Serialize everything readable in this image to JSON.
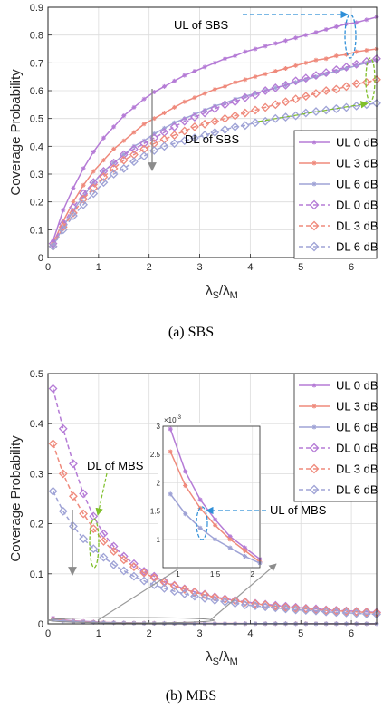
{
  "colors": {
    "s0": "#b57bd6",
    "s3": "#ef8a7c",
    "s6": "#9fa3d6",
    "grid": "#dcdcdc",
    "annGreen": "#7fbf2a",
    "annBlue": "#2f8fd8",
    "annGray": "#8c8c8c"
  },
  "chart_data": [
    {
      "type": "line",
      "caption": "(a)  SBS",
      "xlabel_main": "λ",
      "xlabel_sub1": "S",
      "xlabel_sep": "/λ",
      "xlabel_sub2": "M",
      "ylabel": "Coverage Probability",
      "xlim": [
        0,
        6.5
      ],
      "ylim": [
        0,
        0.9
      ],
      "xticks": [
        "0",
        "1",
        "2",
        "3",
        "4",
        "5",
        "6"
      ],
      "yticks": [
        "0",
        "0.1",
        "0.2",
        "0.3",
        "0.4",
        "0.5",
        "0.6",
        "0.7",
        "0.8",
        "0.9"
      ],
      "grid": true,
      "legend_position": "bottom-right",
      "annotations": [
        "UL of SBS",
        "DL of SBS"
      ],
      "series": [
        {
          "name": "UL 0 dB",
          "style": "solid-star",
          "color": "s0",
          "x": [
            0.1,
            0.3,
            0.5,
            0.7,
            0.9,
            1.1,
            1.3,
            1.5,
            1.7,
            1.9,
            2.1,
            2.3,
            2.5,
            2.7,
            2.9,
            3.1,
            3.3,
            3.5,
            3.7,
            3.9,
            4.1,
            4.3,
            4.5,
            4.7,
            4.9,
            5.1,
            5.3,
            5.5,
            5.7,
            5.9,
            6.1,
            6.3,
            6.5
          ],
          "y": [
            0.06,
            0.17,
            0.25,
            0.32,
            0.38,
            0.43,
            0.47,
            0.51,
            0.54,
            0.57,
            0.595,
            0.615,
            0.635,
            0.655,
            0.67,
            0.685,
            0.7,
            0.715,
            0.725,
            0.74,
            0.75,
            0.76,
            0.77,
            0.78,
            0.79,
            0.8,
            0.81,
            0.82,
            0.83,
            0.84,
            0.845,
            0.855,
            0.865
          ]
        },
        {
          "name": "UL 3 dB",
          "style": "solid-star",
          "color": "s3",
          "x": [
            0.1,
            0.3,
            0.5,
            0.7,
            0.9,
            1.1,
            1.3,
            1.5,
            1.7,
            1.9,
            2.1,
            2.3,
            2.5,
            2.7,
            2.9,
            3.1,
            3.3,
            3.5,
            3.7,
            3.9,
            4.1,
            4.3,
            4.5,
            4.7,
            4.9,
            5.1,
            5.3,
            5.5,
            5.7,
            5.9,
            6.1,
            6.3,
            6.5
          ],
          "y": [
            0.05,
            0.13,
            0.2,
            0.26,
            0.31,
            0.35,
            0.39,
            0.42,
            0.45,
            0.48,
            0.5,
            0.52,
            0.54,
            0.56,
            0.575,
            0.59,
            0.605,
            0.615,
            0.63,
            0.64,
            0.65,
            0.66,
            0.67,
            0.68,
            0.69,
            0.7,
            0.71,
            0.715,
            0.725,
            0.73,
            0.74,
            0.745,
            0.75
          ]
        },
        {
          "name": "UL 6 dB",
          "style": "solid-star",
          "color": "s6",
          "x": [
            0.1,
            0.3,
            0.5,
            0.7,
            0.9,
            1.1,
            1.3,
            1.5,
            1.7,
            1.9,
            2.1,
            2.3,
            2.5,
            2.7,
            2.9,
            3.1,
            3.3,
            3.5,
            3.7,
            3.9,
            4.1,
            4.3,
            4.5,
            4.7,
            4.9,
            5.1,
            5.3,
            5.5,
            5.7,
            5.9,
            6.1,
            6.3,
            6.5
          ],
          "y": [
            0.04,
            0.11,
            0.17,
            0.22,
            0.27,
            0.31,
            0.34,
            0.37,
            0.4,
            0.42,
            0.445,
            0.465,
            0.485,
            0.5,
            0.515,
            0.53,
            0.545,
            0.555,
            0.57,
            0.58,
            0.59,
            0.6,
            0.61,
            0.62,
            0.63,
            0.64,
            0.65,
            0.66,
            0.67,
            0.68,
            0.69,
            0.7,
            0.71
          ]
        },
        {
          "name": "DL 0 dB",
          "style": "dashed-diamond",
          "color": "s0",
          "x": [
            0.1,
            0.3,
            0.5,
            0.7,
            0.9,
            1.1,
            1.3,
            1.5,
            1.7,
            1.9,
            2.1,
            2.3,
            2.5,
            2.7,
            2.9,
            3.1,
            3.3,
            3.5,
            3.7,
            3.9,
            4.1,
            4.3,
            4.5,
            4.7,
            4.9,
            5.1,
            5.3,
            5.5,
            5.7,
            5.9,
            6.1,
            6.3,
            6.5
          ],
          "y": [
            0.05,
            0.12,
            0.18,
            0.23,
            0.27,
            0.31,
            0.34,
            0.37,
            0.39,
            0.41,
            0.43,
            0.45,
            0.47,
            0.49,
            0.505,
            0.52,
            0.535,
            0.55,
            0.56,
            0.575,
            0.585,
            0.6,
            0.61,
            0.62,
            0.635,
            0.645,
            0.655,
            0.665,
            0.675,
            0.685,
            0.695,
            0.705,
            0.715
          ]
        },
        {
          "name": "DL 3 dB",
          "style": "dashed-diamond",
          "color": "s3",
          "x": [
            0.1,
            0.3,
            0.5,
            0.7,
            0.9,
            1.1,
            1.3,
            1.5,
            1.7,
            1.9,
            2.1,
            2.3,
            2.5,
            2.7,
            2.9,
            3.1,
            3.3,
            3.5,
            3.7,
            3.9,
            4.1,
            4.3,
            4.5,
            4.7,
            4.9,
            5.1,
            5.3,
            5.5,
            5.7,
            5.9,
            6.1,
            6.3,
            6.5
          ],
          "y": [
            0.04,
            0.11,
            0.16,
            0.21,
            0.25,
            0.29,
            0.32,
            0.35,
            0.37,
            0.39,
            0.41,
            0.425,
            0.44,
            0.455,
            0.47,
            0.48,
            0.49,
            0.5,
            0.51,
            0.52,
            0.53,
            0.54,
            0.55,
            0.56,
            0.57,
            0.58,
            0.59,
            0.6,
            0.605,
            0.615,
            0.625,
            0.63,
            0.64
          ]
        },
        {
          "name": "DL 6 dB",
          "style": "dashed-diamond",
          "color": "s6",
          "x": [
            0.1,
            0.3,
            0.5,
            0.7,
            0.9,
            1.1,
            1.3,
            1.5,
            1.7,
            1.9,
            2.1,
            2.3,
            2.5,
            2.7,
            2.9,
            3.1,
            3.3,
            3.5,
            3.7,
            3.9,
            4.1,
            4.3,
            4.5,
            4.7,
            4.9,
            5.1,
            5.3,
            5.5,
            5.7,
            5.9,
            6.1,
            6.3,
            6.5
          ],
          "y": [
            0.04,
            0.1,
            0.15,
            0.19,
            0.23,
            0.27,
            0.3,
            0.32,
            0.345,
            0.365,
            0.385,
            0.4,
            0.41,
            0.42,
            0.43,
            0.44,
            0.45,
            0.46,
            0.47,
            0.475,
            0.485,
            0.49,
            0.5,
            0.505,
            0.51,
            0.52,
            0.525,
            0.53,
            0.535,
            0.54,
            0.545,
            0.55,
            0.555
          ]
        }
      ]
    },
    {
      "type": "line",
      "caption": "(b)  MBS",
      "xlabel_main": "λ",
      "xlabel_sub1": "S",
      "xlabel_sep": "/λ",
      "xlabel_sub2": "M",
      "ylabel": "Coverage Probability",
      "xlim": [
        0,
        6.5
      ],
      "ylim": [
        0,
        0.5
      ],
      "xticks": [
        "0",
        "1",
        "2",
        "3",
        "4",
        "5",
        "6"
      ],
      "yticks": [
        "0",
        "0.1",
        "0.2",
        "0.3",
        "0.4",
        "0.5"
      ],
      "grid": true,
      "legend_position": "top-right",
      "annotations": [
        "DL of MBS",
        "UL of MBS"
      ],
      "series": [
        {
          "name": "UL 0 dB",
          "style": "solid-star",
          "color": "s0",
          "x": [
            0.1,
            0.3,
            0.5,
            0.7,
            0.9,
            1.1,
            1.3,
            1.5,
            1.7,
            1.9,
            2.1,
            2.3,
            2.5,
            2.7,
            2.9,
            3.1,
            3.3,
            3.5,
            3.7,
            3.9,
            4.1,
            4.3,
            4.5,
            4.7,
            4.9,
            5.1,
            5.3,
            5.5,
            5.7,
            5.9,
            6.1,
            6.3,
            6.5
          ],
          "y": [
            0.012,
            0.008,
            0.006,
            0.005,
            0.004,
            0.003,
            0.0025,
            0.002,
            0.0018,
            0.0015,
            0.0013,
            0.0011,
            0.001,
            0.0009,
            0.0008,
            0.0008,
            0.0007,
            0.0007,
            0.0006,
            0.0006,
            0.0005,
            0.0005,
            0.0005,
            0.0005,
            0.0004,
            0.0004,
            0.0004,
            0.0004,
            0.0004,
            0.0003,
            0.0003,
            0.0003,
            0.0003
          ]
        },
        {
          "name": "UL 3 dB",
          "style": "solid-star",
          "color": "s3",
          "x": [
            0.1,
            0.3,
            0.5,
            0.7,
            0.9,
            1.1,
            1.3,
            1.5,
            1.7,
            1.9,
            2.1,
            2.3,
            2.5,
            2.7,
            2.9,
            3.1,
            3.3,
            3.5,
            3.7,
            3.9,
            4.1,
            4.3,
            4.5,
            4.7,
            4.9,
            5.1,
            5.3,
            5.5,
            5.7,
            5.9,
            6.1,
            6.3,
            6.5
          ],
          "y": [
            0.01,
            0.007,
            0.005,
            0.004,
            0.0035,
            0.0028,
            0.0023,
            0.0019,
            0.0016,
            0.0014,
            0.0012,
            0.001,
            0.0009,
            0.0008,
            0.0008,
            0.0007,
            0.0007,
            0.0006,
            0.0006,
            0.0005,
            0.0005,
            0.0005,
            0.0004,
            0.0004,
            0.0004,
            0.0004,
            0.0004,
            0.0003,
            0.0003,
            0.0003,
            0.0003,
            0.0003,
            0.0003
          ]
        },
        {
          "name": "UL 6 dB",
          "style": "solid-star",
          "color": "s6",
          "x": [
            0.1,
            0.3,
            0.5,
            0.7,
            0.9,
            1.1,
            1.3,
            1.5,
            1.7,
            1.9,
            2.1,
            2.3,
            2.5,
            2.7,
            2.9,
            3.1,
            3.3,
            3.5,
            3.7,
            3.9,
            4.1,
            4.3,
            4.5,
            4.7,
            4.9,
            5.1,
            5.3,
            5.5,
            5.7,
            5.9,
            6.1,
            6.3,
            6.5
          ],
          "y": [
            0.008,
            0.006,
            0.0045,
            0.0035,
            0.003,
            0.0024,
            0.002,
            0.0017,
            0.0014,
            0.0012,
            0.001,
            0.0009,
            0.0008,
            0.0007,
            0.0007,
            0.0006,
            0.0006,
            0.0005,
            0.0005,
            0.0005,
            0.0004,
            0.0004,
            0.0004,
            0.0004,
            0.0003,
            0.0003,
            0.0003,
            0.0003,
            0.0003,
            0.0003,
            0.0003,
            0.0002,
            0.0002
          ]
        },
        {
          "name": "DL 0 dB",
          "style": "dashed-diamond",
          "color": "s0",
          "x": [
            0.1,
            0.3,
            0.5,
            0.7,
            0.9,
            1.1,
            1.3,
            1.5,
            1.7,
            1.9,
            2.1,
            2.3,
            2.5,
            2.7,
            2.9,
            3.1,
            3.3,
            3.5,
            3.7,
            3.9,
            4.1,
            4.3,
            4.5,
            4.7,
            4.9,
            5.1,
            5.3,
            5.5,
            5.7,
            5.9,
            6.1,
            6.3,
            6.5
          ],
          "y": [
            0.47,
            0.39,
            0.32,
            0.26,
            0.215,
            0.18,
            0.155,
            0.135,
            0.12,
            0.105,
            0.095,
            0.085,
            0.077,
            0.07,
            0.064,
            0.059,
            0.054,
            0.05,
            0.047,
            0.044,
            0.041,
            0.039,
            0.037,
            0.035,
            0.033,
            0.031,
            0.03,
            0.028,
            0.027,
            0.026,
            0.025,
            0.024,
            0.023
          ]
        },
        {
          "name": "DL 3 dB",
          "style": "dashed-diamond",
          "color": "s3",
          "x": [
            0.1,
            0.3,
            0.5,
            0.7,
            0.9,
            1.1,
            1.3,
            1.5,
            1.7,
            1.9,
            2.1,
            2.3,
            2.5,
            2.7,
            2.9,
            3.1,
            3.3,
            3.5,
            3.7,
            3.9,
            4.1,
            4.3,
            4.5,
            4.7,
            4.9,
            5.1,
            5.3,
            5.5,
            5.7,
            5.9,
            6.1,
            6.3,
            6.5
          ],
          "y": [
            0.36,
            0.3,
            0.255,
            0.22,
            0.19,
            0.165,
            0.145,
            0.128,
            0.114,
            0.102,
            0.092,
            0.083,
            0.076,
            0.069,
            0.063,
            0.058,
            0.053,
            0.049,
            0.046,
            0.043,
            0.04,
            0.038,
            0.035,
            0.033,
            0.031,
            0.03,
            0.028,
            0.027,
            0.026,
            0.025,
            0.024,
            0.023,
            0.022
          ]
        },
        {
          "name": "DL 6 dB",
          "style": "dashed-diamond",
          "color": "s6",
          "x": [
            0.1,
            0.3,
            0.5,
            0.7,
            0.9,
            1.1,
            1.3,
            1.5,
            1.7,
            1.9,
            2.1,
            2.3,
            2.5,
            2.7,
            2.9,
            3.1,
            3.3,
            3.5,
            3.7,
            3.9,
            4.1,
            4.3,
            4.5,
            4.7,
            4.9,
            5.1,
            5.3,
            5.5,
            5.7,
            5.9,
            6.1,
            6.3,
            6.5
          ],
          "y": [
            0.265,
            0.225,
            0.195,
            0.17,
            0.15,
            0.133,
            0.118,
            0.106,
            0.095,
            0.086,
            0.078,
            0.071,
            0.065,
            0.06,
            0.055,
            0.051,
            0.047,
            0.044,
            0.041,
            0.038,
            0.036,
            0.034,
            0.032,
            0.03,
            0.028,
            0.027,
            0.026,
            0.024,
            0.023,
            0.022,
            0.021,
            0.02,
            0.019
          ]
        }
      ],
      "inset": {
        "xlim": [
          0.8,
          2.1
        ],
        "ylim": [
          0.5,
          3
        ],
        "xticks": [
          "1",
          "1.5",
          "2"
        ],
        "yticks": [
          "1",
          "1.5",
          "2",
          "2.5",
          "3"
        ],
        "exponent": "×10",
        "exponent_power": "-3",
        "series": [
          {
            "name": "UL 0 dB",
            "color": "s0",
            "x": [
              0.9,
              1.1,
              1.3,
              1.5,
              1.7,
              1.9,
              2.1
            ],
            "y": [
              2.95,
              2.2,
              1.7,
              1.35,
              1.05,
              0.85,
              0.65
            ]
          },
          {
            "name": "UL 3 dB",
            "color": "s3",
            "x": [
              0.9,
              1.1,
              1.3,
              1.5,
              1.7,
              1.9,
              2.1
            ],
            "y": [
              2.55,
              1.95,
              1.55,
              1.25,
              1.0,
              0.8,
              0.6
            ]
          },
          {
            "name": "UL 6 dB",
            "color": "s6",
            "x": [
              0.9,
              1.1,
              1.3,
              1.5,
              1.7,
              1.9,
              2.1
            ],
            "y": [
              1.8,
              1.45,
              1.2,
              1.0,
              0.85,
              0.7,
              0.58
            ]
          }
        ]
      }
    }
  ]
}
